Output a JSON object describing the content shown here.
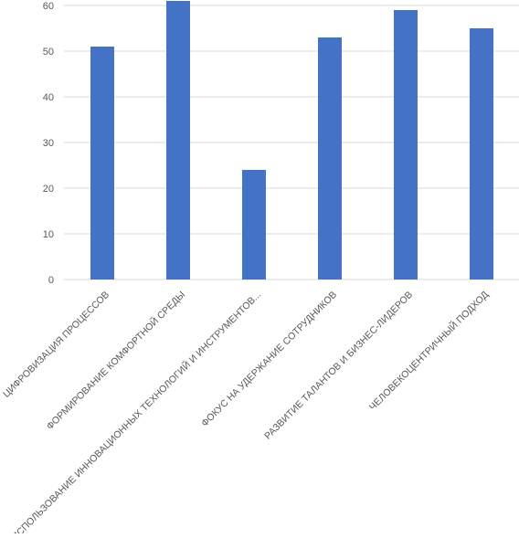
{
  "chart_data": {
    "type": "bar",
    "categories": [
      "ЦИФРОВИЗАЦИЯ ПРОЦЕССОВ",
      "ФОРМИРОВАНИЕ КОМФОРТНОЙ СРЕДЫ",
      "ИСПОЛЬЗОВАНИЕ ИННОВАЦИОННЫХ ТЕХНОЛОГИЙ И ИНСТРУМЕНТОВ...",
      "ФОКУС НА УДЕРЖАНИЕ СОТРУДНИКОВ",
      "РАЗВИТИЕ ТАЛАНТОВ И БИЗНЕС-ЛИДЕРОВ",
      "ЧЕЛОВЕКОЦЕНТРИЧНЫЙ ПОДХОД"
    ],
    "values": [
      51,
      61,
      24,
      53,
      59,
      55
    ],
    "ylim": [
      0,
      60
    ],
    "yticks": [
      "0",
      "10",
      "20",
      "30",
      "40",
      "50",
      "60"
    ],
    "grid": true,
    "legend": "none",
    "colors": {
      "bar": "#4472C4",
      "grid": "#D9D9D9",
      "text": "#595959"
    }
  }
}
